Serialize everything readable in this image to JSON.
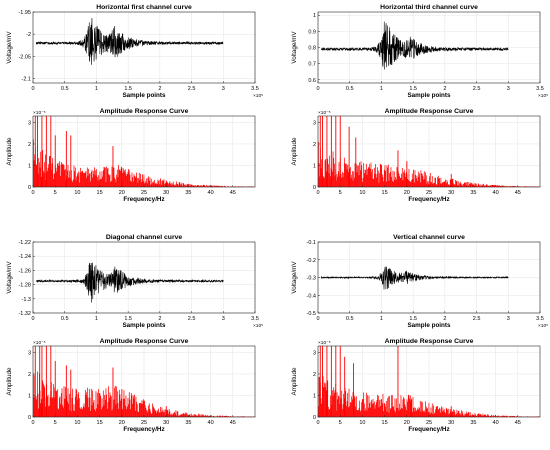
{
  "chart_data": [
    {
      "type": "line",
      "title": "Horizontal first channel curve",
      "xlabel": "Sample points",
      "ylabel": "Voltage/mV",
      "xlim": [
        0,
        3.5
      ],
      "ylim": [
        -2.11,
        -1.95
      ],
      "x_ticks": [
        "0",
        "0.5",
        "1",
        "1.5",
        "2",
        "2.5",
        "3",
        "3.5"
      ],
      "y_ticks": [
        "-1.95",
        "-2",
        "-2.05",
        "-2.1"
      ],
      "y_tick_values": [
        -1.95,
        -2.0,
        -2.05,
        -2.1
      ],
      "x_exponent": "×10⁵",
      "grid": true,
      "color": "#000000",
      "signal": {
        "x_range": [
          0.05,
          3.0
        ],
        "baseline": -2.02,
        "events": [
          {
            "x": 0.9,
            "amplitude": 0.075
          },
          {
            "x": 1.28,
            "amplitude": 0.035
          }
        ]
      }
    },
    {
      "type": "bar",
      "title": "Amplitude Response Curve",
      "xlabel": "Frequency/Hz",
      "ylabel": "Amplitude",
      "xlim": [
        0,
        50
      ],
      "ylim": [
        0,
        3.3
      ],
      "x_ticks": [
        "0",
        "5",
        "10",
        "15",
        "20",
        "25",
        "30",
        "35",
        "40",
        "45"
      ],
      "y_ticks": [
        "0",
        "1",
        "2",
        "3"
      ],
      "y_tick_values": [
        0,
        1,
        2,
        3
      ],
      "y_exponent": "×10⁻⁵",
      "grid": true,
      "color": "#ff0000",
      "spikes": [
        [
          0.5,
          3.3
        ],
        [
          1.0,
          3.3
        ],
        [
          2.0,
          3.3
        ],
        [
          3.0,
          3.3
        ],
        [
          4.0,
          3.3
        ],
        [
          5.0,
          2.4
        ],
        [
          7.5,
          2.6
        ],
        [
          8.5,
          2.4
        ],
        [
          18.0,
          1.9
        ],
        [
          20.0,
          0.9
        ],
        [
          30.0,
          0.3
        ]
      ],
      "envelope": [
        [
          0,
          1.8
        ],
        [
          2,
          1.3
        ],
        [
          5,
          0.95
        ],
        [
          10,
          0.75
        ],
        [
          15,
          0.7
        ],
        [
          19,
          0.8
        ],
        [
          25,
          0.45
        ],
        [
          30,
          0.25
        ],
        [
          35,
          0.12
        ],
        [
          40,
          0.06
        ],
        [
          45,
          0.03
        ],
        [
          50,
          0.02
        ]
      ]
    },
    {
      "type": "line",
      "title": "Horizontal third channel curve",
      "xlabel": "Sample points",
      "ylabel": "Voltage/mV",
      "xlim": [
        0,
        3.5
      ],
      "ylim": [
        0.58,
        1.02
      ],
      "x_ticks": [
        "0",
        "0.5",
        "1",
        "1.5",
        "2",
        "2.5",
        "3",
        "3.5"
      ],
      "y_ticks": [
        "1",
        "0.9",
        "0.8",
        "0.7",
        "0.6"
      ],
      "y_tick_values": [
        1.0,
        0.9,
        0.8,
        0.7,
        0.6
      ],
      "x_exponent": "×10⁵",
      "grid": true,
      "color": "#000000",
      "signal": {
        "x_range": [
          0.05,
          3.0
        ],
        "baseline": 0.79,
        "events": [
          {
            "x": 1.05,
            "amplitude": 0.22
          },
          {
            "x": 1.45,
            "amplitude": 0.06
          }
        ]
      }
    },
    {
      "type": "bar",
      "title": "Amplitude Response Curve",
      "xlabel": "Frequency/Hz",
      "ylabel": "Amplitude",
      "xlim": [
        0,
        50
      ],
      "ylim": [
        0,
        3.3
      ],
      "x_ticks": [
        "0",
        "5",
        "10",
        "15",
        "20",
        "25",
        "30",
        "35",
        "40",
        "45"
      ],
      "y_ticks": [
        "0",
        "1",
        "2",
        "3"
      ],
      "y_tick_values": [
        0,
        1,
        2,
        3
      ],
      "y_exponent": "×10⁻⁵",
      "grid": true,
      "color": "#ff0000",
      "spikes": [
        [
          0.5,
          3.3
        ],
        [
          1.0,
          3.3
        ],
        [
          2.0,
          3.3
        ],
        [
          3.0,
          3.3
        ],
        [
          4.0,
          3.3
        ],
        [
          5.0,
          3.3
        ],
        [
          7.0,
          2.8
        ],
        [
          8.5,
          2.3
        ],
        [
          18.0,
          1.7
        ],
        [
          20.0,
          1.2
        ],
        [
          30.0,
          0.6
        ]
      ],
      "envelope": [
        [
          0,
          1.6
        ],
        [
          2,
          1.4
        ],
        [
          5,
          1.1
        ],
        [
          10,
          0.9
        ],
        [
          15,
          0.8
        ],
        [
          20,
          0.7
        ],
        [
          25,
          0.5
        ],
        [
          30,
          0.3
        ],
        [
          35,
          0.15
        ],
        [
          40,
          0.07
        ],
        [
          45,
          0.03
        ],
        [
          50,
          0.02
        ]
      ]
    },
    {
      "type": "line",
      "title": "Diagonal channel curve",
      "xlabel": "Sample points",
      "ylabel": "Voltage/mV",
      "xlim": [
        0,
        3.5
      ],
      "ylim": [
        -1.32,
        -1.22
      ],
      "x_ticks": [
        "0",
        "0.5",
        "1",
        "1.5",
        "2",
        "2.5",
        "3",
        "3.5"
      ],
      "y_ticks": [
        "-1.22",
        "-1.24",
        "-1.26",
        "-1.28",
        "-1.3",
        "-1.32"
      ],
      "y_tick_values": [
        -1.22,
        -1.24,
        -1.26,
        -1.28,
        -1.3,
        -1.32
      ],
      "x_exponent": "×10⁵",
      "grid": true,
      "color": "#000000",
      "signal": {
        "x_range": [
          0.05,
          3.0
        ],
        "baseline": -1.275,
        "events": [
          {
            "x": 0.9,
            "amplitude": 0.04
          },
          {
            "x": 1.3,
            "amplitude": 0.02
          }
        ]
      }
    },
    {
      "type": "bar",
      "title": "Amplitude Response Curve",
      "xlabel": "Frequency/Hz",
      "ylabel": "Amplitude",
      "xlim": [
        0,
        50
      ],
      "ylim": [
        0,
        3.3
      ],
      "x_ticks": [
        "0",
        "5",
        "10",
        "15",
        "20",
        "25",
        "30",
        "35",
        "40",
        "45"
      ],
      "y_ticks": [
        "0",
        "1",
        "2",
        "3"
      ],
      "y_tick_values": [
        0,
        1,
        2,
        3
      ],
      "y_exponent": "×10⁻⁵",
      "grid": true,
      "color": "#ff0000",
      "spikes": [
        [
          0.5,
          3.3
        ],
        [
          1.5,
          3.3
        ],
        [
          2.0,
          3.3
        ],
        [
          3.0,
          3.3
        ],
        [
          4.0,
          3.3
        ],
        [
          5.0,
          2.6
        ],
        [
          7.5,
          2.4
        ],
        [
          8.5,
          2.2
        ],
        [
          18.0,
          2.3
        ],
        [
          20.0,
          1.3
        ],
        [
          30.0,
          0.5
        ]
      ],
      "envelope": [
        [
          0,
          1.8
        ],
        [
          2,
          1.4
        ],
        [
          5,
          1.1
        ],
        [
          10,
          1.0
        ],
        [
          15,
          1.05
        ],
        [
          19,
          1.15
        ],
        [
          25,
          0.6
        ],
        [
          30,
          0.3
        ],
        [
          35,
          0.15
        ],
        [
          40,
          0.07
        ],
        [
          45,
          0.03
        ],
        [
          50,
          0.02
        ]
      ]
    },
    {
      "type": "line",
      "title": "Vertical channel curve",
      "xlabel": "Sample points",
      "ylabel": "Voltage/mV",
      "xlim": [
        0,
        3.5
      ],
      "ylim": [
        -0.5,
        -0.1
      ],
      "x_ticks": [
        "0",
        "0.5",
        "1",
        "1.5",
        "2",
        "2.5",
        "3",
        "3.5"
      ],
      "y_ticks": [
        "-0.1",
        "-0.2",
        "-0.3",
        "-0.4",
        "-0.5"
      ],
      "y_tick_values": [
        -0.1,
        -0.2,
        -0.3,
        -0.4,
        -0.5
      ],
      "x_exponent": "×10⁵",
      "grid": true,
      "color": "#000000",
      "signal": {
        "x_range": [
          0.05,
          3.0
        ],
        "baseline": -0.3,
        "events": [
          {
            "x": 1.05,
            "amplitude": 0.09
          },
          {
            "x": 1.4,
            "amplitude": 0.03
          }
        ]
      }
    },
    {
      "type": "bar",
      "title": "Amplitude Response Curve",
      "xlabel": "Frequency/Hz",
      "ylabel": "Amplitude",
      "xlim": [
        0,
        50
      ],
      "ylim": [
        0,
        3.3
      ],
      "x_ticks": [
        "0",
        "5",
        "10",
        "15",
        "20",
        "25",
        "30",
        "35",
        "40",
        "45"
      ],
      "y_ticks": [
        "0",
        "1",
        "2",
        "3"
      ],
      "y_tick_values": [
        0,
        1,
        2,
        3
      ],
      "y_exponent": "×10⁻⁵",
      "grid": true,
      "color": "#ff0000",
      "spikes": [
        [
          0.5,
          3.3
        ],
        [
          1.0,
          3.3
        ],
        [
          2.0,
          3.3
        ],
        [
          3.0,
          3.3
        ],
        [
          4.0,
          3.3
        ],
        [
          5.0,
          3.3
        ],
        [
          6.0,
          2.8
        ],
        [
          8.0,
          2.5
        ],
        [
          18.0,
          3.3
        ],
        [
          21.0,
          0.8
        ],
        [
          30.0,
          0.5
        ]
      ],
      "envelope": [
        [
          0,
          1.7
        ],
        [
          2,
          1.4
        ],
        [
          5,
          1.1
        ],
        [
          10,
          0.85
        ],
        [
          15,
          0.8
        ],
        [
          19,
          0.85
        ],
        [
          25,
          0.5
        ],
        [
          30,
          0.3
        ],
        [
          35,
          0.15
        ],
        [
          40,
          0.07
        ],
        [
          45,
          0.03
        ],
        [
          50,
          0.02
        ]
      ]
    }
  ]
}
